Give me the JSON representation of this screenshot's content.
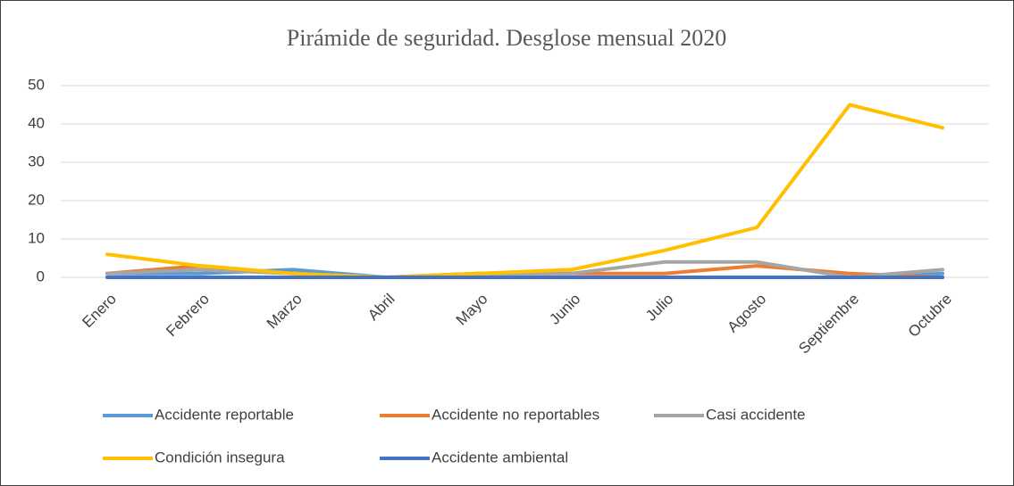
{
  "chart_data": {
    "type": "line",
    "title": "Pirámide de seguridad. Desglose mensual 2020",
    "categories": [
      "Enero",
      "Febrero",
      "Marzo",
      "Abril",
      "Mayo",
      "Junio",
      "Julio",
      "Agosto",
      "Septiembre",
      "Octubre"
    ],
    "series": [
      {
        "name": "Accidente reportable",
        "color": "#5b9bd5",
        "values": [
          1,
          1,
          2,
          0,
          0,
          0,
          0,
          0,
          0,
          1
        ]
      },
      {
        "name": "Accidente no reportables",
        "color": "#ed7d31",
        "values": [
          1,
          3,
          1,
          0,
          1,
          1,
          1,
          3,
          1,
          0
        ]
      },
      {
        "name": "Casi accidente",
        "color": "#a5a5a5",
        "values": [
          1,
          2,
          1,
          0,
          1,
          1,
          4,
          4,
          0,
          2
        ]
      },
      {
        "name": "Condición insegura",
        "color": "#ffc000",
        "values": [
          6,
          3,
          1,
          0,
          1,
          2,
          7,
          13,
          45,
          39
        ]
      },
      {
        "name": "Accidente ambiental",
        "color": "#4472c4",
        "values": [
          0,
          0,
          0,
          0,
          0,
          0,
          0,
          0,
          0,
          0
        ]
      }
    ],
    "ylim": [
      0,
      50
    ],
    "yticks": [
      0,
      10,
      20,
      30,
      40,
      50
    ],
    "grid": true
  }
}
